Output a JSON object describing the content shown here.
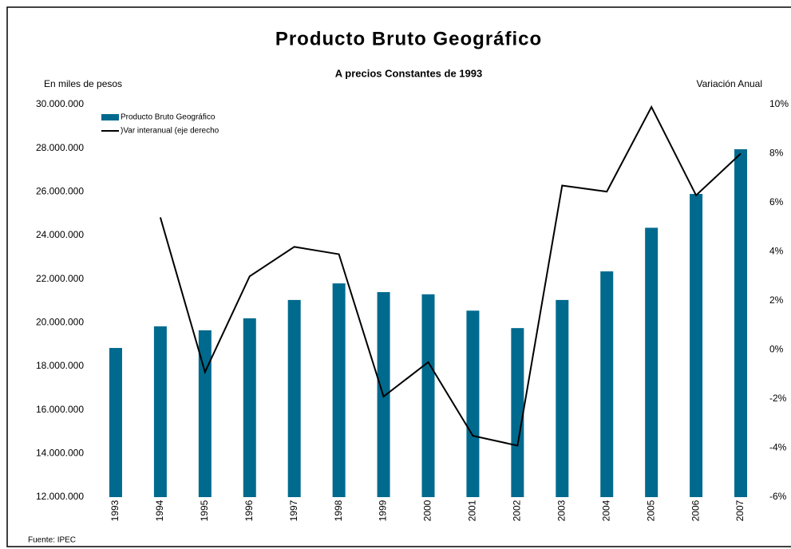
{
  "chart_data": {
    "type": "bar_line",
    "title": "Producto Bruto Geográfico",
    "subtitle": "A precios Constantes de 1993",
    "y_label": "En miles de pesos",
    "y2_label": "Variación Anual",
    "source": "Fuente: IPEC",
    "categories": [
      "1993",
      "1994",
      "1995",
      "1996",
      "1997",
      "1998",
      "1999",
      "2000",
      "2001",
      "2002",
      "2003",
      "2004",
      "2005",
      "2006",
      "2007"
    ],
    "series": [
      {
        "name": "Producto Bruto Geográfico",
        "type": "bar",
        "color": "#006a8e",
        "values": [
          18840000,
          19830000,
          19650000,
          20200000,
          21040000,
          21800000,
          21400000,
          21300000,
          20550000,
          19750000,
          21040000,
          22350000,
          24350000,
          25900000,
          27950000
        ]
      },
      {
        "name": ")Var interanual (eje derecho",
        "type": "line",
        "color": "#000000",
        "axis": "y2",
        "values": [
          null,
          5.4,
          -0.9,
          3.0,
          4.2,
          3.9,
          -1.9,
          -0.5,
          -3.5,
          -3.9,
          6.7,
          6.45,
          9.9,
          6.3,
          8.0
        ]
      }
    ],
    "ylim": [
      12000000,
      30000000
    ],
    "yticks": [
      {
        "value": 12000000,
        "label": "12.000.000"
      },
      {
        "value": 14000000,
        "label": "14.000.000"
      },
      {
        "value": 16000000,
        "label": "16.000.000"
      },
      {
        "value": 18000000,
        "label": "18.000.000"
      },
      {
        "value": 20000000,
        "label": "20.000.000"
      },
      {
        "value": 22000000,
        "label": "22.000.000"
      },
      {
        "value": 24000000,
        "label": "24.000.000"
      },
      {
        "value": 26000000,
        "label": "26.000.000"
      },
      {
        "value": 28000000,
        "label": "28.000.000"
      },
      {
        "value": 30000000,
        "label": "30.000.000"
      }
    ],
    "y2lim": [
      -6,
      10
    ],
    "y2ticks": [
      {
        "value": -6,
        "label": "-6%"
      },
      {
        "value": -4,
        "label": "-4%"
      },
      {
        "value": -2,
        "label": "-2%"
      },
      {
        "value": 0,
        "label": "0%"
      },
      {
        "value": 2,
        "label": "2%"
      },
      {
        "value": 4,
        "label": "4%"
      },
      {
        "value": 6,
        "label": "6%"
      },
      {
        "value": 8,
        "label": "8%"
      },
      {
        "value": 10,
        "label": "10%"
      }
    ],
    "grid": false,
    "legend": "top-left"
  }
}
